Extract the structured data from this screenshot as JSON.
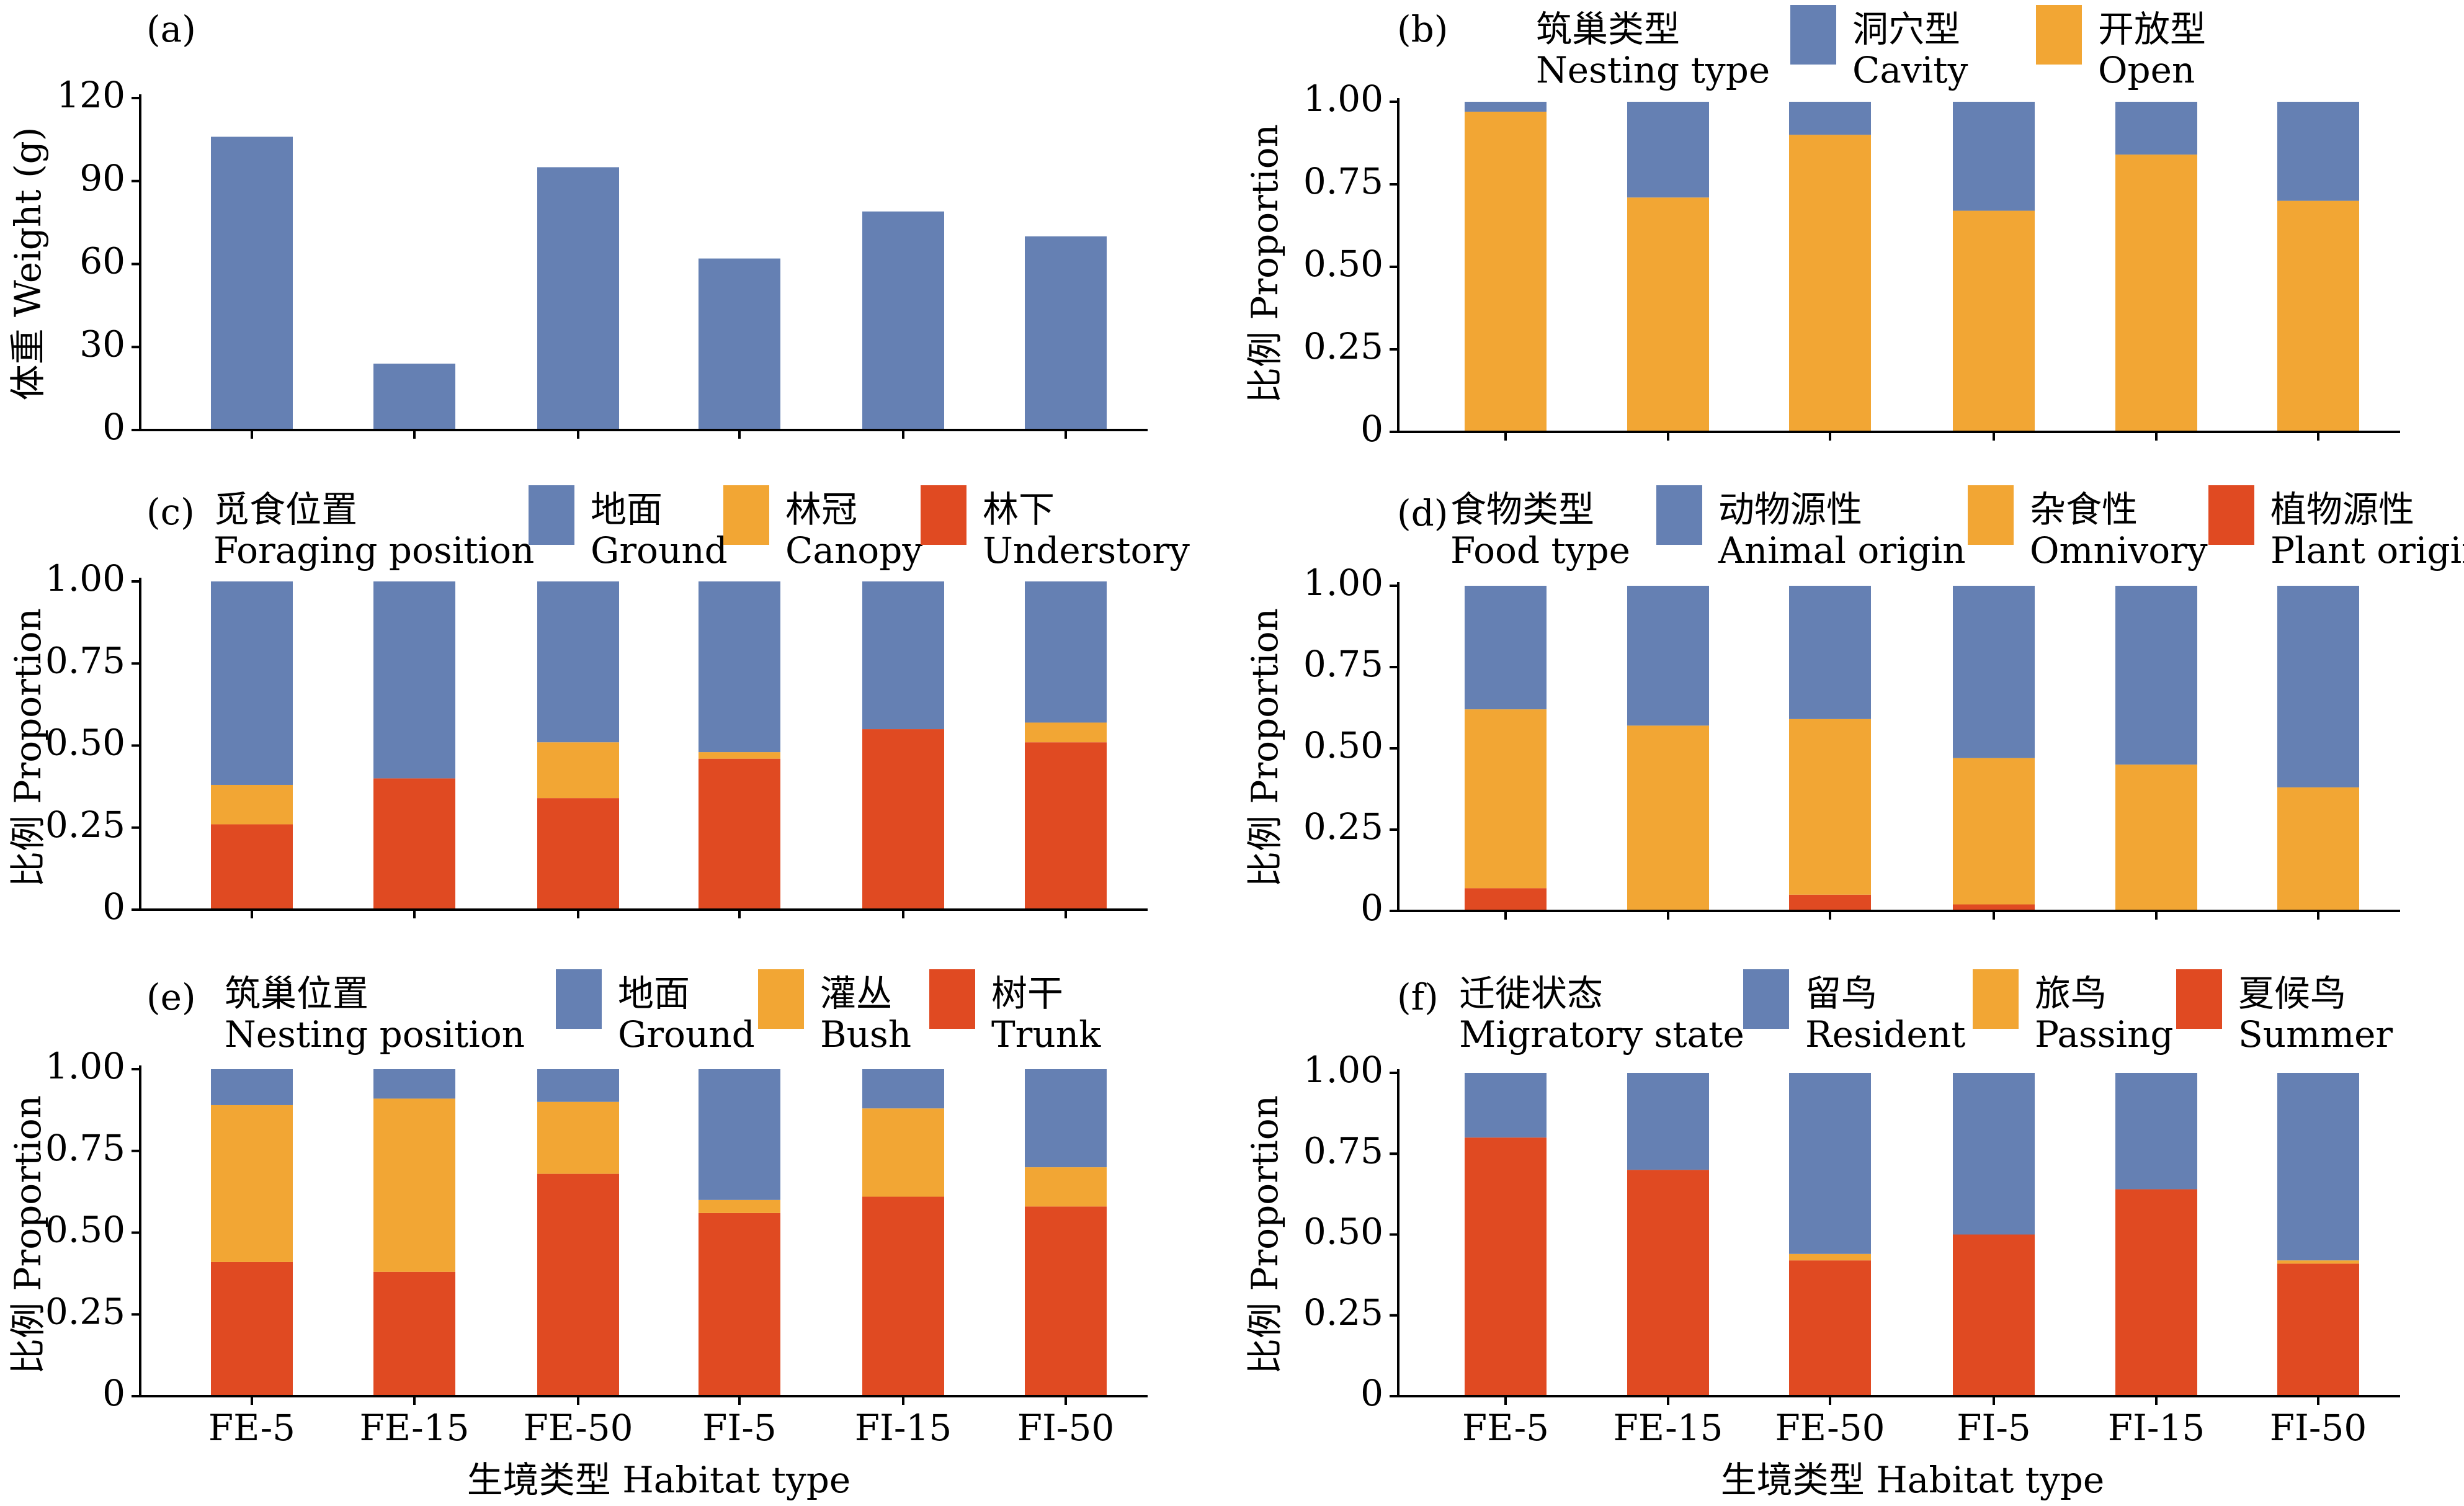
{
  "colors": {
    "blue": "#6580B3",
    "orange": "#F2A634",
    "red": "#E04A22",
    "axis": "#000000"
  },
  "categories": [
    "FE-5",
    "FE-15",
    "FE-50",
    "FI-5",
    "FI-15",
    "FI-50"
  ],
  "x_axis_title": "生境类型 Habitat type",
  "chart_data": [
    {
      "panel": "(a)",
      "type": "bar",
      "ylabel": "体重 Weight (g)",
      "ylim": [
        0,
        120
      ],
      "yticks": [
        0,
        30,
        60,
        90,
        120
      ],
      "ytick_labels": [
        "0",
        "30",
        "60",
        "90",
        "120"
      ],
      "categories": [
        "FE-5",
        "FE-15",
        "FE-50",
        "FI-5",
        "FI-15",
        "FI-50"
      ],
      "series": [
        {
          "color": "blue",
          "values": [
            106,
            24,
            95,
            62,
            79,
            70
          ]
        }
      ]
    },
    {
      "panel": "(b)",
      "type": "bar",
      "stacked": true,
      "ylabel": "比例 Proportion",
      "ylim": [
        0,
        1
      ],
      "yticks": [
        0,
        0.25,
        0.5,
        0.75,
        1
      ],
      "ytick_labels": [
        "0",
        "0.25",
        "0.50",
        "0.75",
        "1.00"
      ],
      "legend_title": [
        "筑巢类型",
        "Nesting type"
      ],
      "categories": [
        "FE-5",
        "FE-15",
        "FE-50",
        "FI-5",
        "FI-15",
        "FI-50"
      ],
      "series": [
        {
          "name": [
            "开放型",
            "Open"
          ],
          "color": "orange",
          "values": [
            0.97,
            0.71,
            0.9,
            0.67,
            0.84,
            0.7
          ]
        },
        {
          "name": [
            "洞穴型",
            "Cavity"
          ],
          "color": "blue",
          "values": [
            0.03,
            0.29,
            0.1,
            0.33,
            0.16,
            0.3
          ]
        }
      ],
      "legend_order": [
        1,
        0
      ]
    },
    {
      "panel": "(c)",
      "type": "bar",
      "stacked": true,
      "ylabel": "比例 Proportion",
      "ylim": [
        0,
        1
      ],
      "yticks": [
        0,
        0.25,
        0.5,
        0.75,
        1
      ],
      "ytick_labels": [
        "0",
        "0.25",
        "0.50",
        "0.75",
        "1.00"
      ],
      "legend_title": [
        "觅食位置",
        "Foraging position"
      ],
      "categories": [
        "FE-5",
        "FE-15",
        "FE-50",
        "FI-5",
        "FI-15",
        "FI-50"
      ],
      "series": [
        {
          "name": [
            "林下",
            "Understory"
          ],
          "color": "red",
          "values": [
            0.26,
            0.4,
            0.34,
            0.46,
            0.55,
            0.51
          ]
        },
        {
          "name": [
            "林冠",
            "Canopy"
          ],
          "color": "orange",
          "values": [
            0.12,
            0,
            0.17,
            0.02,
            0,
            0.06
          ]
        },
        {
          "name": [
            "地面",
            "Ground"
          ],
          "color": "blue",
          "values": [
            0.62,
            0.6,
            0.49,
            0.52,
            0.45,
            0.43
          ]
        }
      ],
      "legend_order": [
        2,
        1,
        0
      ]
    },
    {
      "panel": "(d)",
      "type": "bar",
      "stacked": true,
      "ylabel": "比例 Proportion",
      "ylim": [
        0,
        1
      ],
      "yticks": [
        0,
        0.25,
        0.5,
        0.75,
        1
      ],
      "ytick_labels": [
        "0",
        "0.25",
        "0.50",
        "0.75",
        "1.00"
      ],
      "legend_title": [
        "食物类型",
        "Food type"
      ],
      "categories": [
        "FE-5",
        "FE-15",
        "FE-50",
        "FI-5",
        "FI-15",
        "FI-50"
      ],
      "series": [
        {
          "name": [
            "植物源性",
            "Plant origin"
          ],
          "color": "red",
          "values": [
            0.07,
            0,
            0.05,
            0.02,
            0,
            0
          ]
        },
        {
          "name": [
            "杂食性",
            "Omnivory"
          ],
          "color": "orange",
          "values": [
            0.55,
            0.57,
            0.54,
            0.45,
            0.45,
            0.38
          ]
        },
        {
          "name": [
            "动物源性",
            "Animal origin"
          ],
          "color": "blue",
          "values": [
            0.38,
            0.43,
            0.41,
            0.53,
            0.55,
            0.62
          ]
        }
      ],
      "legend_order": [
        2,
        1,
        0
      ]
    },
    {
      "panel": "(e)",
      "type": "bar",
      "stacked": true,
      "ylabel": "比例 Proportion",
      "ylim": [
        0,
        1
      ],
      "yticks": [
        0,
        0.25,
        0.5,
        0.75,
        1
      ],
      "ytick_labels": [
        "0",
        "0.25",
        "0.50",
        "0.75",
        "1.00"
      ],
      "legend_title": [
        "筑巢位置",
        "Nesting position"
      ],
      "categories": [
        "FE-5",
        "FE-15",
        "FE-50",
        "FI-5",
        "FI-15",
        "FI-50"
      ],
      "series": [
        {
          "name": [
            "树干",
            "Trunk"
          ],
          "color": "red",
          "values": [
            0.41,
            0.38,
            0.68,
            0.56,
            0.61,
            0.58
          ]
        },
        {
          "name": [
            "灌丛",
            "Bush"
          ],
          "color": "orange",
          "values": [
            0.48,
            0.53,
            0.22,
            0.04,
            0.27,
            0.12
          ]
        },
        {
          "name": [
            "地面",
            "Ground"
          ],
          "color": "blue",
          "values": [
            0.11,
            0.09,
            0.1,
            0.4,
            0.12,
            0.3
          ]
        }
      ],
      "legend_order": [
        2,
        1,
        0
      ]
    },
    {
      "panel": "(f)",
      "type": "bar",
      "stacked": true,
      "ylabel": "比例 Proportion",
      "ylim": [
        0,
        1
      ],
      "yticks": [
        0,
        0.25,
        0.5,
        0.75,
        1
      ],
      "ytick_labels": [
        "0",
        "0.25",
        "0.50",
        "0.75",
        "1.00"
      ],
      "legend_title": [
        "迁徙状态",
        "Migratory state"
      ],
      "categories": [
        "FE-5",
        "FE-15",
        "FE-50",
        "FI-5",
        "FI-15",
        "FI-50"
      ],
      "series": [
        {
          "name": [
            "夏候鸟",
            "Summer"
          ],
          "color": "red",
          "values": [
            0.8,
            0.7,
            0.42,
            0.5,
            0.64,
            0.41
          ]
        },
        {
          "name": [
            "旅鸟",
            "Passing"
          ],
          "color": "orange",
          "values": [
            0,
            0,
            0.02,
            0,
            0,
            0.01
          ]
        },
        {
          "name": [
            "留鸟",
            "Resident"
          ],
          "color": "blue",
          "values": [
            0.2,
            0.3,
            0.56,
            0.5,
            0.36,
            0.58
          ]
        }
      ],
      "legend_order": [
        2,
        1,
        0
      ]
    }
  ]
}
